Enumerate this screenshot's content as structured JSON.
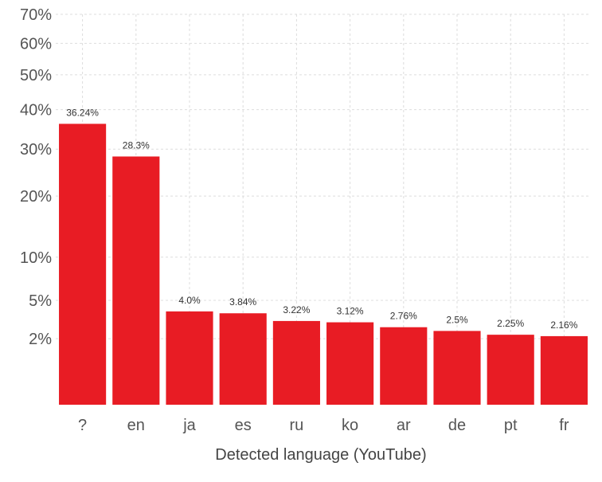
{
  "chart_data": {
    "type": "bar",
    "title": "",
    "xlabel": "Detected language (YouTube)",
    "ylabel": "",
    "y_scale": "sqrt",
    "ylim": [
      0,
      70
    ],
    "y_ticks": [
      2,
      5,
      10,
      20,
      30,
      40,
      50,
      60,
      70
    ],
    "y_tick_labels": [
      "2%",
      "5%",
      "10%",
      "20%",
      "30%",
      "40%",
      "50%",
      "60%",
      "70%"
    ],
    "categories": [
      "?",
      "en",
      "ja",
      "es",
      "ru",
      "ko",
      "ar",
      "de",
      "pt",
      "fr"
    ],
    "values": [
      36.24,
      28.3,
      4.0,
      3.84,
      3.22,
      3.12,
      2.76,
      2.5,
      2.25,
      2.16
    ],
    "data_labels": [
      "36.24%",
      "28.3%",
      "4.0%",
      "3.84%",
      "3.22%",
      "3.12%",
      "2.76%",
      "2.5%",
      "2.25%",
      "2.16%"
    ],
    "bar_color": "#e81c24",
    "grid": true,
    "legend": "none"
  }
}
